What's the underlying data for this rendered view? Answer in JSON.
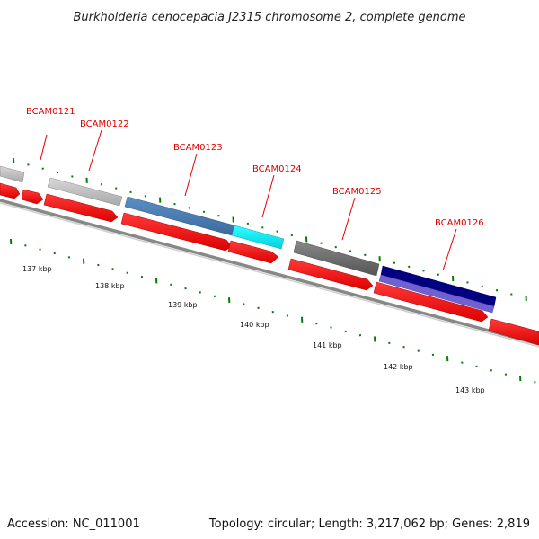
{
  "title": "Burkholderia cenocepacia J2315 chromosome 2, complete genome",
  "footer": {
    "accession": "Accession: NC_011001",
    "stats": "Topology: circular; Length: 3,217,062 bp; Genes: 2,819"
  },
  "colors": {
    "cds_red": "#ff0000",
    "backbone_gray": "#808080",
    "tick_green": "#008000",
    "label_red": "#e00000"
  },
  "kbp_labels": [
    "137 kbp",
    "138 kbp",
    "139 kbp",
    "140 kbp",
    "141 kbp",
    "142 kbp",
    "143 kbp"
  ],
  "genes": [
    {
      "name": "BCAM0121"
    },
    {
      "name": "BCAM0122"
    },
    {
      "name": "BCAM0123"
    },
    {
      "name": "BCAM0124"
    },
    {
      "name": "BCAM0125"
    },
    {
      "name": "BCAM0126"
    }
  ],
  "feature_colors": [
    "#b8b8b8",
    "#b8b8b8",
    "#4a7fb5",
    "#00e5ee",
    "#666666",
    "#000080",
    "#6a5acd"
  ]
}
